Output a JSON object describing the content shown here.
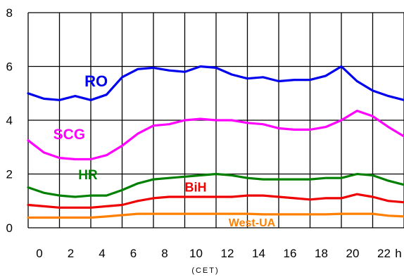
{
  "chart_data": {
    "type": "line",
    "title": "",
    "xlabel": "(CET)",
    "ylabel": "",
    "x": [
      0,
      1,
      2,
      3,
      4,
      5,
      6,
      7,
      8,
      9,
      10,
      11,
      12,
      13,
      14,
      15,
      16,
      17,
      18,
      19,
      20,
      21,
      22,
      23,
      24
    ],
    "xlim": [
      0,
      24
    ],
    "ylim": [
      0,
      8
    ],
    "x_tick_labels": [
      "0",
      "2",
      "4",
      "6",
      "8",
      "10",
      "12",
      "14",
      "16",
      "18",
      "20",
      "22",
      "h"
    ],
    "y_tick_labels": [
      "0",
      "2",
      "4",
      "6",
      "8"
    ],
    "grid": true,
    "series": [
      {
        "name": "RO",
        "color": "#0000ee",
        "values": [
          5.0,
          4.8,
          4.75,
          4.9,
          4.75,
          4.95,
          5.6,
          5.9,
          5.95,
          5.85,
          5.8,
          6.0,
          5.95,
          5.7,
          5.55,
          5.6,
          5.45,
          5.5,
          5.5,
          5.65,
          6.0,
          5.45,
          5.1,
          4.9,
          4.75
        ]
      },
      {
        "name": "SCG",
        "color": "#ff00ff",
        "values": [
          3.25,
          2.8,
          2.6,
          2.55,
          2.55,
          2.7,
          3.05,
          3.5,
          3.8,
          3.85,
          4.0,
          4.05,
          4.0,
          4.0,
          3.9,
          3.85,
          3.7,
          3.65,
          3.65,
          3.75,
          4.0,
          4.35,
          4.15,
          3.75,
          3.4
        ]
      },
      {
        "name": "HR",
        "color": "#008000",
        "values": [
          1.5,
          1.3,
          1.2,
          1.15,
          1.2,
          1.2,
          1.4,
          1.65,
          1.8,
          1.85,
          1.9,
          1.95,
          2.0,
          1.95,
          1.85,
          1.8,
          1.8,
          1.8,
          1.8,
          1.85,
          1.85,
          2.0,
          1.95,
          1.75,
          1.6
        ]
      },
      {
        "name": "BiH",
        "color": "#ee0000",
        "values": [
          0.85,
          0.8,
          0.75,
          0.75,
          0.75,
          0.8,
          0.85,
          1.0,
          1.1,
          1.15,
          1.15,
          1.15,
          1.15,
          1.15,
          1.2,
          1.2,
          1.15,
          1.1,
          1.05,
          1.1,
          1.1,
          1.25,
          1.15,
          1.0,
          0.95
        ]
      },
      {
        "name": "West-UA",
        "color": "#ff8000",
        "values": [
          0.38,
          0.38,
          0.38,
          0.38,
          0.38,
          0.42,
          0.47,
          0.52,
          0.52,
          0.52,
          0.52,
          0.52,
          0.52,
          0.52,
          0.52,
          0.5,
          0.5,
          0.5,
          0.5,
          0.5,
          0.52,
          0.52,
          0.52,
          0.45,
          0.42
        ]
      }
    ]
  }
}
